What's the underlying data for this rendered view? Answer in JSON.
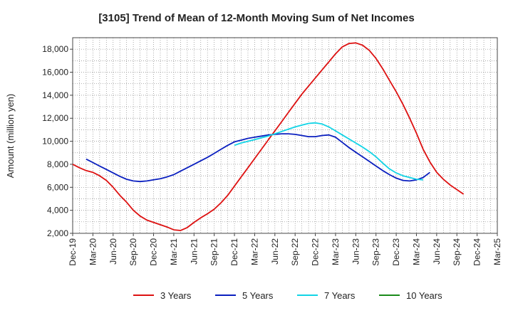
{
  "chart_data": {
    "type": "line",
    "title": "[3105]  Trend of Mean of 12-Month Moving Sum of Net Incomes",
    "ylabel": "Amount (million yen)",
    "xlabel": "",
    "ylim": [
      2000,
      19000
    ],
    "yticks": [
      2000,
      4000,
      6000,
      8000,
      10000,
      12000,
      14000,
      16000,
      18000
    ],
    "ytick_labels": [
      "2,000",
      "4,000",
      "6,000",
      "8,000",
      "10,000",
      "12,000",
      "14,000",
      "16,000",
      "18,000"
    ],
    "xticks": [
      "2019-12",
      "2020-03",
      "2020-06",
      "2020-09",
      "2020-12",
      "2021-03",
      "2021-06",
      "2021-09",
      "2021-12",
      "2022-03",
      "2022-06",
      "2022-09",
      "2022-12",
      "2023-03",
      "2023-06",
      "2023-09",
      "2023-12",
      "2024-03",
      "2024-06",
      "2024-09",
      "2024-12",
      "2025-03"
    ],
    "xtick_labels": [
      "Dec-19",
      "Mar-20",
      "Jun-20",
      "Sep-20",
      "Dec-20",
      "Mar-21",
      "Jun-21",
      "Sep-21",
      "Dec-21",
      "Mar-22",
      "Jun-22",
      "Sep-22",
      "Dec-22",
      "Mar-23",
      "Jun-23",
      "Sep-23",
      "Dec-23",
      "Mar-24",
      "Jun-24",
      "Sep-24",
      "Dec-24",
      "Mar-25"
    ],
    "grid": true,
    "legend_position": "bottom",
    "series": [
      {
        "name": "3 Years",
        "color": "#dd1111",
        "points": [
          [
            "2019-12",
            8000
          ],
          [
            "2020-01",
            7700
          ],
          [
            "2020-02",
            7450
          ],
          [
            "2020-03",
            7300
          ],
          [
            "2020-04",
            7000
          ],
          [
            "2020-05",
            6600
          ],
          [
            "2020-06",
            6000
          ],
          [
            "2020-07",
            5300
          ],
          [
            "2020-08",
            4700
          ],
          [
            "2020-09",
            4000
          ],
          [
            "2020-10",
            3500
          ],
          [
            "2020-11",
            3150
          ],
          [
            "2020-12",
            2950
          ],
          [
            "2021-01",
            2750
          ],
          [
            "2021-02",
            2550
          ],
          [
            "2021-03",
            2300
          ],
          [
            "2021-04",
            2250
          ],
          [
            "2021-05",
            2500
          ],
          [
            "2021-06",
            2950
          ],
          [
            "2021-07",
            3350
          ],
          [
            "2021-08",
            3700
          ],
          [
            "2021-09",
            4100
          ],
          [
            "2021-10",
            4650
          ],
          [
            "2021-11",
            5300
          ],
          [
            "2021-12",
            6100
          ],
          [
            "2022-01",
            6900
          ],
          [
            "2022-02",
            7700
          ],
          [
            "2022-03",
            8500
          ],
          [
            "2022-04",
            9300
          ],
          [
            "2022-05",
            10100
          ],
          [
            "2022-06",
            10900
          ],
          [
            "2022-07",
            11700
          ],
          [
            "2022-08",
            12500
          ],
          [
            "2022-09",
            13300
          ],
          [
            "2022-10",
            14100
          ],
          [
            "2022-11",
            14800
          ],
          [
            "2022-12",
            15500
          ],
          [
            "2023-01",
            16200
          ],
          [
            "2023-02",
            16900
          ],
          [
            "2023-03",
            17600
          ],
          [
            "2023-04",
            18200
          ],
          [
            "2023-05",
            18500
          ],
          [
            "2023-06",
            18550
          ],
          [
            "2023-07",
            18350
          ],
          [
            "2023-08",
            17900
          ],
          [
            "2023-09",
            17200
          ],
          [
            "2023-10",
            16300
          ],
          [
            "2023-11",
            15300
          ],
          [
            "2023-12",
            14300
          ],
          [
            "2024-01",
            13200
          ],
          [
            "2024-02",
            12000
          ],
          [
            "2024-03",
            10700
          ],
          [
            "2024-04",
            9300
          ],
          [
            "2024-05",
            8200
          ],
          [
            "2024-06",
            7300
          ],
          [
            "2024-07",
            6700
          ],
          [
            "2024-08",
            6200
          ],
          [
            "2024-09",
            5800
          ],
          [
            "2024-10",
            5400
          ]
        ]
      },
      {
        "name": "5 Years",
        "color": "#0a1fbf",
        "points": [
          [
            "2020-02",
            8450
          ],
          [
            "2020-03",
            8150
          ],
          [
            "2020-04",
            7850
          ],
          [
            "2020-05",
            7550
          ],
          [
            "2020-06",
            7250
          ],
          [
            "2020-07",
            6950
          ],
          [
            "2020-08",
            6700
          ],
          [
            "2020-09",
            6550
          ],
          [
            "2020-10",
            6500
          ],
          [
            "2020-11",
            6550
          ],
          [
            "2020-12",
            6650
          ],
          [
            "2021-01",
            6750
          ],
          [
            "2021-02",
            6900
          ],
          [
            "2021-03",
            7100
          ],
          [
            "2021-04",
            7400
          ],
          [
            "2021-05",
            7700
          ],
          [
            "2021-06",
            8000
          ],
          [
            "2021-07",
            8300
          ],
          [
            "2021-08",
            8600
          ],
          [
            "2021-09",
            8950
          ],
          [
            "2021-10",
            9300
          ],
          [
            "2021-11",
            9650
          ],
          [
            "2021-12",
            9950
          ],
          [
            "2022-01",
            10100
          ],
          [
            "2022-02",
            10250
          ],
          [
            "2022-03",
            10350
          ],
          [
            "2022-04",
            10450
          ],
          [
            "2022-05",
            10550
          ],
          [
            "2022-06",
            10600
          ],
          [
            "2022-07",
            10650
          ],
          [
            "2022-08",
            10650
          ],
          [
            "2022-09",
            10600
          ],
          [
            "2022-10",
            10500
          ],
          [
            "2022-11",
            10400
          ],
          [
            "2022-12",
            10400
          ],
          [
            "2023-01",
            10500
          ],
          [
            "2023-02",
            10550
          ],
          [
            "2023-03",
            10350
          ],
          [
            "2023-04",
            9900
          ],
          [
            "2023-05",
            9450
          ],
          [
            "2023-06",
            9050
          ],
          [
            "2023-07",
            8650
          ],
          [
            "2023-08",
            8250
          ],
          [
            "2023-09",
            7850
          ],
          [
            "2023-10",
            7450
          ],
          [
            "2023-11",
            7100
          ],
          [
            "2023-12",
            6800
          ],
          [
            "2024-01",
            6600
          ],
          [
            "2024-02",
            6550
          ],
          [
            "2024-03",
            6650
          ],
          [
            "2024-04",
            6850
          ],
          [
            "2024-05",
            7300
          ]
        ]
      },
      {
        "name": "7 Years",
        "color": "#11d4e6",
        "points": [
          [
            "2021-12",
            9650
          ],
          [
            "2022-01",
            9850
          ],
          [
            "2022-02",
            10000
          ],
          [
            "2022-03",
            10150
          ],
          [
            "2022-04",
            10300
          ],
          [
            "2022-05",
            10450
          ],
          [
            "2022-06",
            10650
          ],
          [
            "2022-07",
            10850
          ],
          [
            "2022-08",
            11050
          ],
          [
            "2022-09",
            11250
          ],
          [
            "2022-10",
            11400
          ],
          [
            "2022-11",
            11550
          ],
          [
            "2022-12",
            11600
          ],
          [
            "2023-01",
            11500
          ],
          [
            "2023-02",
            11250
          ],
          [
            "2023-03",
            10900
          ],
          [
            "2023-04",
            10550
          ],
          [
            "2023-05",
            10200
          ],
          [
            "2023-06",
            9850
          ],
          [
            "2023-07",
            9500
          ],
          [
            "2023-08",
            9100
          ],
          [
            "2023-09",
            8650
          ],
          [
            "2023-10",
            8100
          ],
          [
            "2023-11",
            7600
          ],
          [
            "2023-12",
            7250
          ],
          [
            "2024-01",
            7000
          ],
          [
            "2024-02",
            6850
          ],
          [
            "2024-03",
            6700
          ],
          [
            "2024-04",
            6650
          ]
        ]
      },
      {
        "name": "10 Years",
        "color": "#1a8a1a",
        "points": []
      }
    ]
  }
}
